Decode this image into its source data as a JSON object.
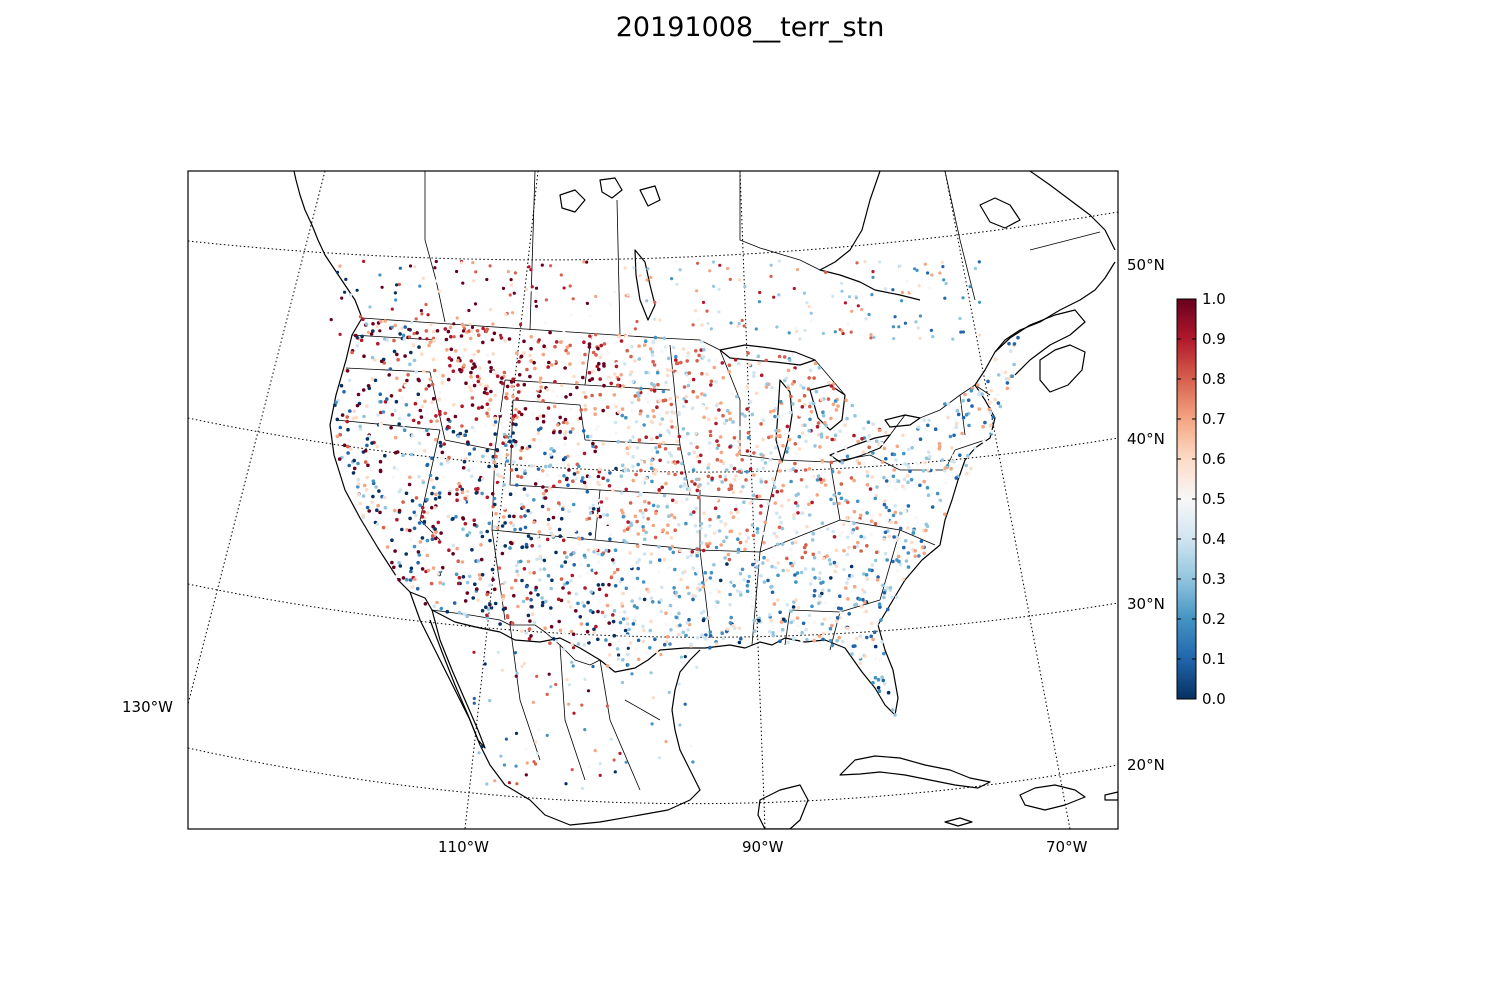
{
  "title": "20191008__terr_stn",
  "map": {
    "projection": "lambert-conformal",
    "lat_labels": [
      "50°N",
      "40°N",
      "30°N",
      "20°N"
    ],
    "lon_labels": [
      "130°W",
      "110°W",
      "90°W",
      "70°W"
    ],
    "lat_lines": [
      20,
      30,
      40,
      50
    ],
    "lon_lines": [
      130,
      110,
      90,
      70
    ]
  },
  "colorbar": {
    "colormap": "RdBu_r",
    "min": 0.0,
    "max": 1.0,
    "ticks": [
      "0.0",
      "0.1",
      "0.2",
      "0.3",
      "0.4",
      "0.5",
      "0.6",
      "0.7",
      "0.8",
      "0.9",
      "1.0"
    ],
    "colors": [
      "#053061",
      "#2166ac",
      "#4393c3",
      "#92c5de",
      "#d1e5f0",
      "#f7f7f7",
      "#fddbc7",
      "#f4a582",
      "#d6604d",
      "#b2182b",
      "#67001f"
    ]
  }
}
